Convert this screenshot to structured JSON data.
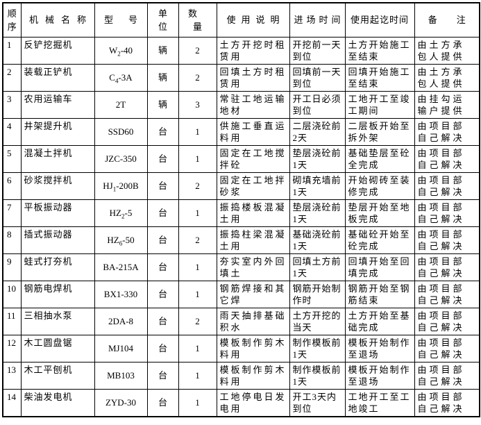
{
  "table": {
    "headers": {
      "seq": "顺序",
      "name": "机械名称",
      "model": "型号",
      "unit": "单位",
      "qty": "数量",
      "usage": "使用说明",
      "entry": "进场时间",
      "duration": "使用起讫时间",
      "remark": "备注"
    },
    "rows": [
      {
        "seq": "1",
        "name": "反铲挖掘机",
        "model": {
          "pre": "W",
          "sub": "2",
          "post": "-40"
        },
        "unit": "辆",
        "qty": "2",
        "usage": "土方开挖时租赁用",
        "entry": "开挖前一天到位",
        "duration": "土方开始施工至结束",
        "remark": "由土方承包人提供"
      },
      {
        "seq": "2",
        "name": "装载正铲机",
        "model": {
          "pre": "C",
          "sub": "4",
          "post": "-3A"
        },
        "unit": "辆",
        "qty": "2",
        "usage": "回填土方时租赁用",
        "entry": "回填前一天到位",
        "duration": "回填开始施工至结束",
        "remark": "由土方承包人提供"
      },
      {
        "seq": "3",
        "name": "农用运输车",
        "model": {
          "pre": "2T",
          "sub": "",
          "post": ""
        },
        "unit": "辆",
        "qty": "3",
        "usage": "常驻工地运输地材",
        "entry": "开工日必须到位",
        "duration": "工地开工至竣工期间",
        "remark": "由挂勾运输户提供"
      },
      {
        "seq": "4",
        "name": "井架提升机",
        "model": {
          "pre": "SSD60",
          "sub": "",
          "post": ""
        },
        "unit": "台",
        "qty": "1",
        "usage": "供施工垂直运料用",
        "entry": "二层浇砼前2天",
        "duration": "二层板开始至拆外架",
        "remark": "由项目部自己解决"
      },
      {
        "seq": "5",
        "name": "混凝土拌机",
        "model": {
          "pre": "JZC-350",
          "sub": "",
          "post": ""
        },
        "unit": "台",
        "qty": "1",
        "usage": "固定在工地搅拌砼",
        "entry": "垫层浇砼前1天",
        "duration": "基础垫层至砼全完成",
        "remark": "由项目部自己解决"
      },
      {
        "seq": "6",
        "name": "砂浆搅拌机",
        "model": {
          "pre": "HJ",
          "sub": "1",
          "post": "-200B"
        },
        "unit": "台",
        "qty": "2",
        "usage": "固定在工地拌砂浆",
        "entry": "砌填充墙前1天",
        "duration": "开始砌砖至装修完成",
        "remark": "由项目部自己解决"
      },
      {
        "seq": "7",
        "name": "平板振动器",
        "model": {
          "pre": "HZ",
          "sub": "2",
          "post": "-5"
        },
        "unit": "台",
        "qty": "1",
        "usage": "振捣楼板混凝土用",
        "entry": "垫层浇砼前1天",
        "duration": "垫层开始至地板完成",
        "remark": "由项目部自己解决"
      },
      {
        "seq": "8",
        "name": "插式振动器",
        "model": {
          "pre": "HZ",
          "sub": "6",
          "post": "-50"
        },
        "unit": "台",
        "qty": "2",
        "usage": "振捣柱梁混凝土用",
        "entry": "基础浇砼前1天",
        "duration": "基础砼开始至砼完成",
        "remark": "由项目部自己解决"
      },
      {
        "seq": "9",
        "name": "蛙式打夯机",
        "model": {
          "pre": "BA-215A",
          "sub": "",
          "post": ""
        },
        "unit": "台",
        "qty": "1",
        "usage": "夯实室内外回填土",
        "entry": "回填土方前1天",
        "duration": "回填开始至回填完成",
        "remark": "由项目部自己解决"
      },
      {
        "seq": "10",
        "name": "钢筋电焊机",
        "model": {
          "pre": "BX1-330",
          "sub": "",
          "post": ""
        },
        "unit": "台",
        "qty": "1",
        "usage": "钢筋焊接和其它焊",
        "entry": "钢筋开始制作时",
        "duration": "钢筋开始至钢筋结束",
        "remark": "由项目部自己解决"
      },
      {
        "seq": "11",
        "name": "三相抽水泵",
        "model": {
          "pre": "2DA-8",
          "sub": "",
          "post": ""
        },
        "unit": "台",
        "qty": "2",
        "usage": "雨天抽排基础积水",
        "entry": "土方开挖的当天",
        "duration": "土方开始至基础完成",
        "remark": "由项目部自己解决"
      },
      {
        "seq": "12",
        "name": "木工圆盘锯",
        "model": {
          "pre": "MJ104",
          "sub": "",
          "post": ""
        },
        "unit": "台",
        "qty": "1",
        "usage": "模板制作剪木料用",
        "entry": "制作模板前1天",
        "duration": "模板开始制作至退场",
        "remark": "由项目部自己解决"
      },
      {
        "seq": "13",
        "name": "木工平刨机",
        "model": {
          "pre": "MB103",
          "sub": "",
          "post": ""
        },
        "unit": "台",
        "qty": "1",
        "usage": "模板制作剪木料用",
        "entry": "制作模板前1天",
        "duration": "模板开始制作至退场",
        "remark": "由项目部自己解决"
      },
      {
        "seq": "14",
        "name": "柴油发电机",
        "model": {
          "pre": "ZYD-30",
          "sub": "",
          "post": ""
        },
        "unit": "台",
        "qty": "1",
        "usage": "工地停电日发电用",
        "entry": "开工3天内到位",
        "duration": "工地开工至工地竣工",
        "remark": "由项目部自己解决"
      }
    ]
  }
}
